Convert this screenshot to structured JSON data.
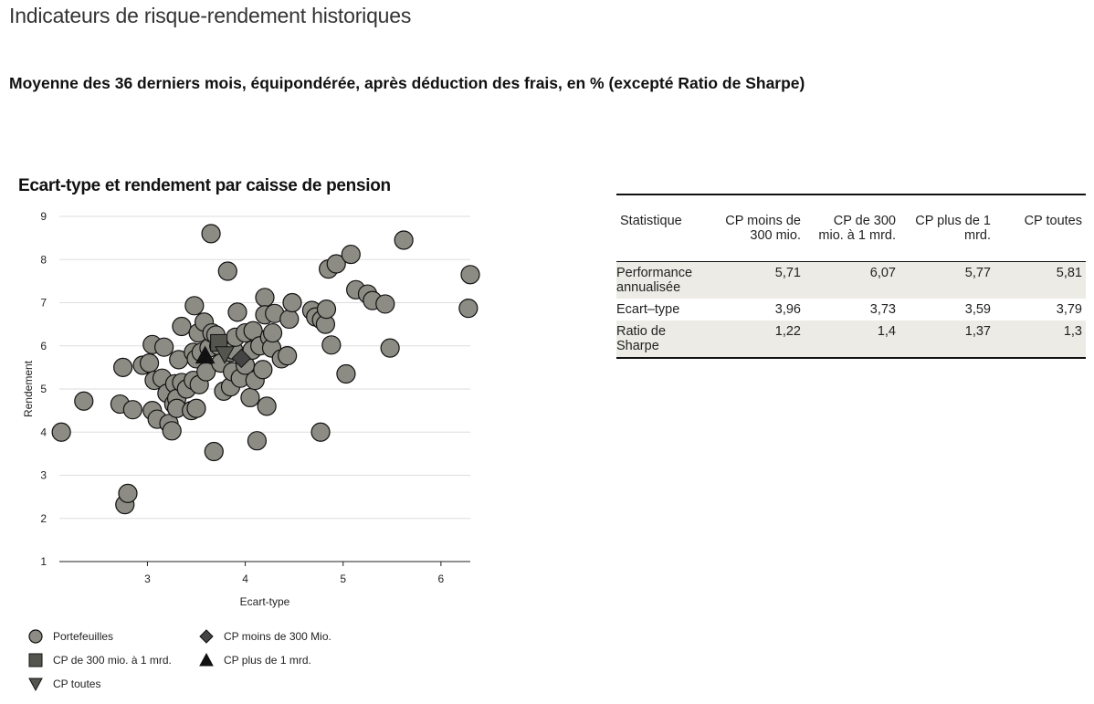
{
  "header": {
    "title": "Indicateurs de risque-rendement historiques",
    "subtitle": "Moyenne des 36 derniers mois, équipondérée, après déduction des frais, en % (excepté Ratio de Sharpe)"
  },
  "colors": {
    "point_fill": "#8c8c84",
    "marker_fill": "#555550",
    "marker_dark": "#111111",
    "grid": "#dddddd",
    "table_shade": "#ecebe5"
  },
  "chart_data": {
    "type": "scatter",
    "title": "Ecart-type et rendement par caisse de pension",
    "xlabel": "Ecart-type",
    "ylabel": "Rendement",
    "xlim": [
      2.1,
      6.3
    ],
    "ylim": [
      1,
      9
    ],
    "xticks": [
      3,
      4,
      5,
      6
    ],
    "yticks": [
      1,
      2,
      3,
      4,
      5,
      6,
      7,
      8,
      9
    ],
    "grid": "horizontal",
    "legend_position": "bottom",
    "series": [
      {
        "name": "Portefeuilles",
        "marker": "circle",
        "points": [
          [
            2.12,
            4.0
          ],
          [
            2.35,
            4.72
          ],
          [
            2.72,
            4.65
          ],
          [
            2.75,
            5.5
          ],
          [
            2.77,
            2.32
          ],
          [
            2.8,
            2.58
          ],
          [
            2.85,
            4.52
          ],
          [
            2.95,
            5.55
          ],
          [
            3.02,
            5.6
          ],
          [
            3.05,
            6.03
          ],
          [
            3.05,
            4.5
          ],
          [
            3.07,
            5.2
          ],
          [
            3.1,
            4.3
          ],
          [
            3.15,
            5.25
          ],
          [
            3.17,
            5.97
          ],
          [
            3.2,
            4.9
          ],
          [
            3.22,
            4.2
          ],
          [
            3.25,
            4.03
          ],
          [
            3.27,
            4.65
          ],
          [
            3.28,
            5.12
          ],
          [
            3.3,
            4.78
          ],
          [
            3.3,
            4.55
          ],
          [
            3.32,
            5.68
          ],
          [
            3.35,
            5.15
          ],
          [
            3.35,
            6.45
          ],
          [
            3.4,
            5.0
          ],
          [
            3.45,
            4.5
          ],
          [
            3.47,
            5.2
          ],
          [
            3.47,
            5.85
          ],
          [
            3.48,
            6.93
          ],
          [
            3.5,
            5.7
          ],
          [
            3.5,
            4.55
          ],
          [
            3.52,
            6.3
          ],
          [
            3.53,
            5.1
          ],
          [
            3.55,
            5.85
          ],
          [
            3.58,
            6.55
          ],
          [
            3.6,
            5.4
          ],
          [
            3.63,
            5.95
          ],
          [
            3.65,
            8.6
          ],
          [
            3.66,
            6.3
          ],
          [
            3.68,
            3.55
          ],
          [
            3.7,
            6.25
          ],
          [
            3.73,
            6.0
          ],
          [
            3.75,
            5.6
          ],
          [
            3.78,
            4.95
          ],
          [
            3.82,
            7.73
          ],
          [
            3.85,
            5.85
          ],
          [
            3.85,
            5.05
          ],
          [
            3.87,
            5.4
          ],
          [
            3.88,
            5.9
          ],
          [
            3.9,
            6.2
          ],
          [
            3.92,
            6.78
          ],
          [
            3.95,
            5.25
          ],
          [
            4.0,
            5.55
          ],
          [
            4.0,
            6.3
          ],
          [
            4.05,
            4.8
          ],
          [
            4.07,
            5.9
          ],
          [
            4.08,
            6.35
          ],
          [
            4.1,
            5.2
          ],
          [
            4.12,
            3.8
          ],
          [
            4.15,
            6.0
          ],
          [
            4.18,
            5.45
          ],
          [
            4.2,
            7.12
          ],
          [
            4.2,
            6.72
          ],
          [
            4.22,
            4.6
          ],
          [
            4.25,
            6.2
          ],
          [
            4.27,
            5.95
          ],
          [
            4.28,
            6.3
          ],
          [
            4.3,
            6.75
          ],
          [
            4.37,
            5.7
          ],
          [
            4.43,
            5.77
          ],
          [
            4.45,
            6.62
          ],
          [
            4.48,
            7.0
          ],
          [
            4.68,
            6.82
          ],
          [
            4.72,
            6.67
          ],
          [
            4.77,
            4.0
          ],
          [
            4.78,
            6.6
          ],
          [
            4.82,
            6.5
          ],
          [
            4.83,
            6.85
          ],
          [
            4.85,
            7.78
          ],
          [
            4.88,
            6.02
          ],
          [
            4.93,
            7.9
          ],
          [
            5.03,
            5.35
          ],
          [
            5.08,
            8.12
          ],
          [
            5.13,
            7.3
          ],
          [
            5.25,
            7.2
          ],
          [
            5.3,
            7.05
          ],
          [
            5.43,
            6.97
          ],
          [
            5.48,
            5.95
          ],
          [
            5.62,
            8.45
          ],
          [
            6.28,
            6.87
          ],
          [
            6.3,
            7.65
          ]
        ]
      },
      {
        "name": "CP moins de 300 Mio.",
        "marker": "diamond",
        "points": [
          [
            3.96,
            5.71
          ]
        ]
      },
      {
        "name": "CP de 300 mio. à 1 mrd.",
        "marker": "square",
        "points": [
          [
            3.73,
            6.07
          ]
        ]
      },
      {
        "name": "CP plus de 1 mrd.",
        "marker": "triangle-up",
        "points": [
          [
            3.59,
            5.77
          ]
        ]
      },
      {
        "name": "CP toutes",
        "marker": "triangle-down",
        "points": [
          [
            3.79,
            5.81
          ]
        ]
      }
    ]
  },
  "legend": {
    "items": [
      {
        "label": "Portefeuilles",
        "marker": "circle"
      },
      {
        "label": "CP moins de 300 Mio.",
        "marker": "diamond"
      },
      {
        "label": "CP de 300 mio. à 1 mrd.",
        "marker": "square"
      },
      {
        "label": "CP plus de 1 mrd.",
        "marker": "triangle-up"
      },
      {
        "label": "CP toutes",
        "marker": "triangle-down"
      }
    ]
  },
  "stats_table": {
    "headers": [
      "Statistique",
      "CP moins de 300 mio.",
      "CP de 300 mio. à 1 mrd.",
      "CP plus de 1 mrd.",
      "CP toutes"
    ],
    "rows": [
      {
        "label": "Performance annualisée",
        "values": [
          "5,71",
          "6,07",
          "5,77",
          "5,81"
        ]
      },
      {
        "label": "Ecart–type",
        "values": [
          "3,96",
          "3,73",
          "3,59",
          "3,79"
        ]
      },
      {
        "label": "Ratio de Sharpe",
        "values": [
          "1,22",
          "1,4",
          "1,37",
          "1,3"
        ]
      }
    ]
  }
}
